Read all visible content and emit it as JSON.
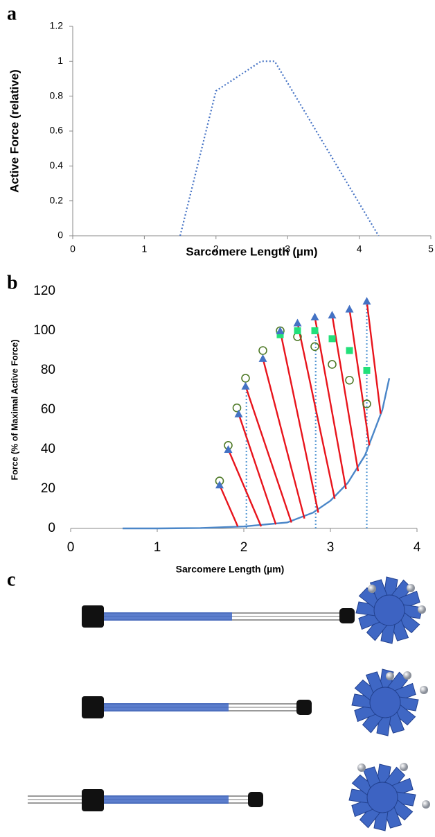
{
  "panel_labels": [
    "a",
    "b",
    "c"
  ],
  "chart_data": [
    {
      "type": "line",
      "xlabel": "Sarcomere Length (µm)",
      "ylabel": "Active Force (relative)",
      "xlim": [
        0,
        5
      ],
      "ylim": [
        0,
        1.2
      ],
      "xticks": [
        0,
        1,
        2,
        3,
        4,
        5
      ],
      "yticks": [
        0,
        0.2,
        0.4,
        0.6,
        0.8,
        1,
        1.2
      ],
      "series": [
        {
          "color": "#4472c4",
          "style": "dotted",
          "x": [
            1.5,
            2.0,
            2.63,
            2.82,
            4.27
          ],
          "values": [
            0,
            0.83,
            1,
            1,
            0
          ]
        }
      ]
    },
    {
      "type": "scatter",
      "xlabel": "Sarcomere Length (µm)",
      "ylabel": "Force (% of Maximal Active Force)",
      "xlim": [
        0,
        4
      ],
      "ylim": [
        0,
        120
      ],
      "xticks": [
        0,
        1,
        2,
        3,
        4
      ],
      "yticks": [
        0,
        20,
        40,
        60,
        80,
        100,
        120
      ],
      "series": [
        {
          "color": "#4a86c8",
          "style": "solid",
          "x": [
            0.6,
            1.0,
            1.5,
            2.0,
            2.5,
            2.8,
            3.0,
            3.2,
            3.4,
            3.6,
            3.68
          ],
          "values": [
            0,
            0,
            0.2,
            1,
            3,
            8,
            14,
            23,
            37,
            60,
            76
          ]
        },
        {
          "color": "#5b9bd5",
          "style": "dotted",
          "x": [
            2.03,
            2.03,
            null,
            2.83,
            2.83,
            null,
            3.42,
            3.42
          ],
          "values": [
            0,
            72,
            null,
            0,
            100,
            null,
            0,
            115
          ]
        },
        {
          "color": "#e8141c",
          "style": "solid",
          "x": [
            1.72,
            1.93,
            null,
            1.82,
            2.2,
            null,
            1.94,
            2.37,
            null,
            2.02,
            2.55,
            null,
            2.22,
            2.7,
            null,
            2.42,
            2.86,
            null,
            2.62,
            3.05,
            null,
            2.82,
            3.18,
            null,
            3.02,
            3.32,
            null,
            3.22,
            3.45,
            null,
            3.42,
            3.58
          ],
          "values": [
            22,
            1,
            null,
            40,
            1,
            null,
            58,
            2,
            null,
            72,
            3,
            null,
            86,
            5,
            null,
            100,
            8,
            null,
            104,
            15,
            null,
            107,
            20,
            null,
            108,
            29,
            null,
            111,
            42,
            null,
            115,
            58
          ]
        },
        {
          "color": "#4f7a28",
          "marker": "circle-open",
          "x": [
            1.72,
            1.82,
            1.92,
            2.02,
            2.22,
            2.42,
            2.62,
            2.82,
            3.02,
            3.22,
            3.42
          ],
          "values": [
            24,
            42,
            61,
            76,
            90,
            100,
            97,
            92,
            83,
            75,
            63
          ]
        },
        {
          "color": "#22e07a",
          "marker": "square",
          "x": [
            2.42,
            2.62,
            2.82,
            3.02,
            3.22,
            3.42
          ],
          "values": [
            98,
            100,
            100,
            96,
            90,
            80
          ]
        },
        {
          "color": "#4472c4",
          "marker": "triangle",
          "x": [
            1.72,
            1.82,
            1.94,
            2.02,
            2.22,
            2.42,
            2.62,
            2.82,
            3.02,
            3.22,
            3.42
          ],
          "values": [
            22,
            40,
            58,
            72,
            86,
            100,
            104,
            107,
            108,
            111,
            115
          ]
        }
      ]
    }
  ]
}
